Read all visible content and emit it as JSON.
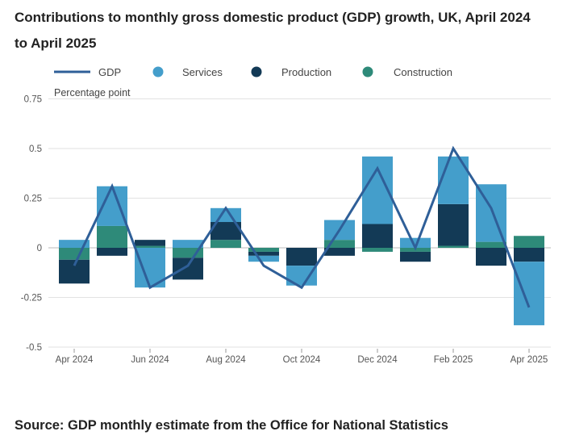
{
  "chart_data": {
    "type": "bar",
    "stacked": true,
    "title": "Contributions to monthly gross domestic product (GDP) growth, UK, April 2024 to April 2025",
    "ylabel": "Percentage point",
    "ylim": [
      -0.5,
      0.75
    ],
    "yticks": [
      "0.75",
      "0.5",
      "0.25",
      "0",
      "-0.25",
      "-0.5"
    ],
    "ytick_values": [
      0.75,
      0.5,
      0.25,
      0,
      -0.25,
      -0.5
    ],
    "grid": true,
    "legend_position": "top",
    "categories": [
      "Apr 2024",
      "May 2024",
      "Jun 2024",
      "Jul 2024",
      "Aug 2024",
      "Sep 2024",
      "Oct 2024",
      "Nov 2024",
      "Dec 2024",
      "Jan 2025",
      "Feb 2025",
      "Mar 2025",
      "Apr 2025"
    ],
    "xtick_labels": [
      "Apr 2024",
      "",
      "Jun 2024",
      "",
      "Aug 2024",
      "",
      "Oct 2024",
      "",
      "Dec 2024",
      "",
      "Feb 2025",
      "",
      "Apr 2025"
    ],
    "series": [
      {
        "name": "Services",
        "type": "bar",
        "color": "#449ECB",
        "values": [
          0.04,
          0.2,
          -0.2,
          0.04,
          0.07,
          -0.03,
          -0.1,
          0.1,
          0.34,
          0.05,
          0.24,
          0.29,
          -0.32
        ]
      },
      {
        "name": "Production",
        "type": "bar",
        "color": "#133A56",
        "values": [
          -0.12,
          -0.04,
          0.03,
          -0.11,
          0.09,
          -0.02,
          -0.09,
          -0.04,
          0.12,
          -0.05,
          0.21,
          -0.09,
          -0.07
        ]
      },
      {
        "name": "Construction",
        "type": "bar",
        "color": "#2E8A79",
        "values": [
          -0.06,
          0.11,
          0.01,
          -0.05,
          0.04,
          -0.02,
          0.0,
          0.04,
          -0.02,
          -0.02,
          0.01,
          0.03,
          0.06
        ]
      },
      {
        "name": "GDP",
        "type": "line",
        "color": "#2F5F98",
        "values": [
          -0.09,
          0.31,
          -0.2,
          -0.09,
          0.2,
          -0.09,
          -0.2,
          0.09,
          0.4,
          0.0,
          0.5,
          0.2,
          -0.3
        ]
      }
    ]
  },
  "title": "Contributions to monthly gross domestic product (GDP) growth, UK, April 2024 to April 2025",
  "legend": {
    "gdp": "GDP",
    "services": "Services",
    "production": "Production",
    "construction": "Construction"
  },
  "source": "Source: GDP monthly estimate from the Office for National Statistics"
}
